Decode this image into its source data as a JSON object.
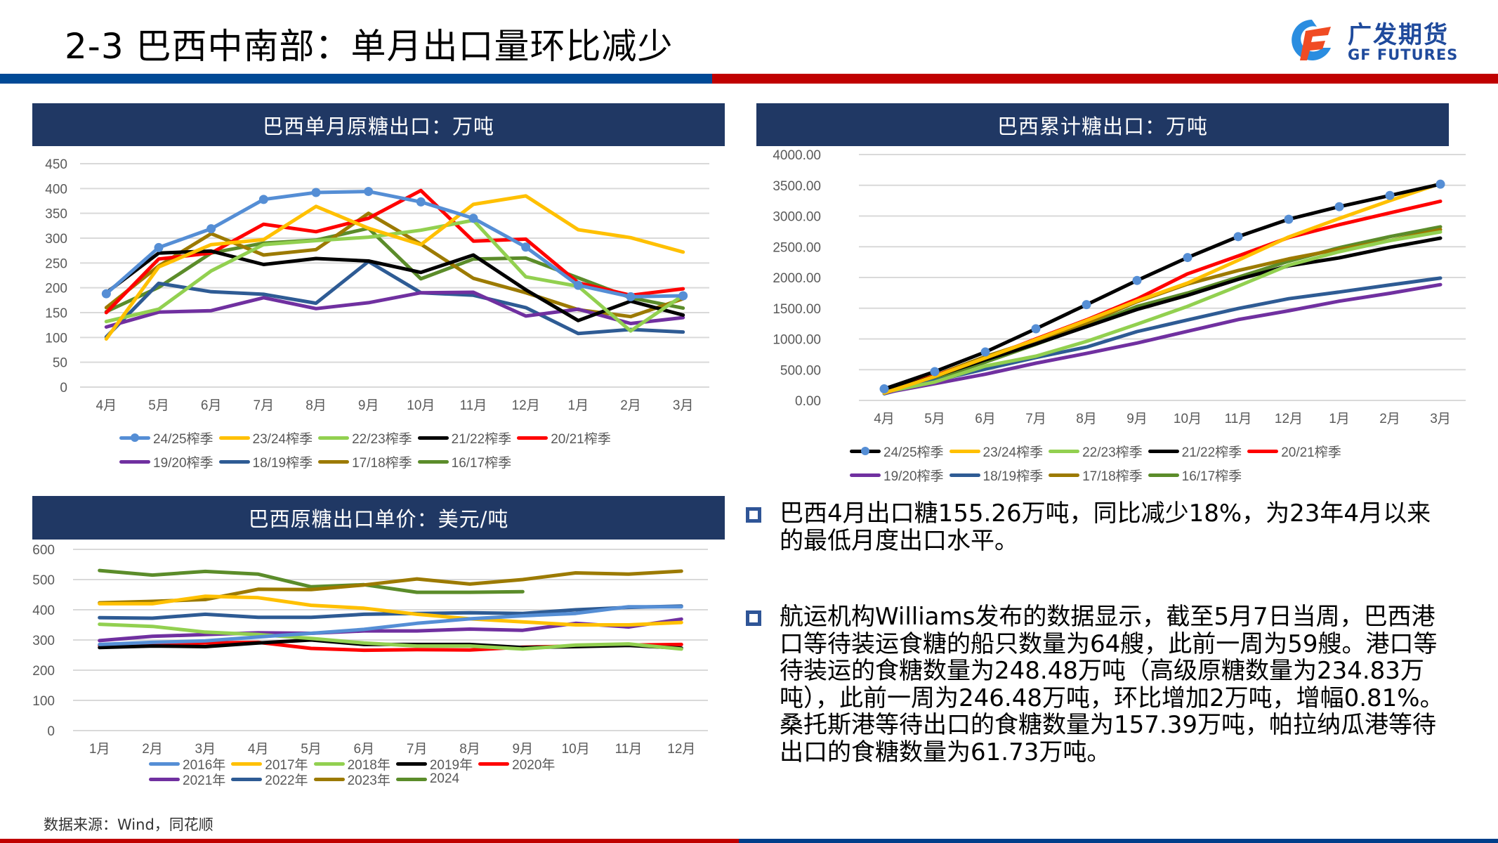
{
  "header": {
    "title": "2-3 巴西中南部：单月出口量环比减少",
    "logo": {
      "cn": "广发期货",
      "en": "GF FUTURES"
    }
  },
  "colors": {
    "header_blue": "#004a96",
    "header_red": "#c00000",
    "panel_navy": "#203864",
    "bullet_blue": "#2f5597"
  },
  "panels": {
    "monthly": {
      "title": "巴西单月原糖出口：万吨"
    },
    "cumulative": {
      "title": "巴西累计糖出口：万吨"
    },
    "price": {
      "title": "巴西原糖出口单价：美元/吨"
    }
  },
  "chart_data": [
    {
      "id": "monthly",
      "type": "line",
      "title": "巴西单月原糖出口：万吨",
      "xlabel": "",
      "ylabel": "",
      "categories": [
        "4月",
        "5月",
        "6月",
        "7月",
        "8月",
        "9月",
        "10月",
        "11月",
        "12月",
        "1月",
        "2月",
        "3月"
      ],
      "ylim": [
        0,
        450
      ],
      "yticks": [
        0,
        50,
        100,
        150,
        200,
        250,
        300,
        350,
        400,
        450
      ],
      "ytick_labels": [
        "0",
        "50",
        "100",
        "150",
        "200",
        "250",
        "300",
        "350",
        "400",
        "450"
      ],
      "grid": true,
      "legend_position": "bottom",
      "series": [
        {
          "name": "24/25榨季",
          "color": "#558ed5",
          "marker": true,
          "values": [
            188,
            281,
            319,
            378,
            392,
            394,
            373,
            340,
            282,
            205,
            182,
            184
          ]
        },
        {
          "name": "23/24榨季",
          "color": "#ffc000",
          "values": [
            97,
            242,
            287,
            297,
            364,
            320,
            287,
            368,
            385,
            317,
            301,
            272
          ]
        },
        {
          "name": "22/23榨季",
          "color": "#92d050",
          "values": [
            132,
            157,
            234,
            287,
            295,
            302,
            316,
            336,
            222,
            203,
            113,
            185
          ]
        },
        {
          "name": "21/22榨季",
          "color": "#000000",
          "values": [
            190,
            270,
            274,
            247,
            259,
            254,
            231,
            266,
            196,
            134,
            173,
            145
          ]
        },
        {
          "name": "20/21榨季",
          "color": "#ff0000",
          "values": [
            150,
            258,
            270,
            328,
            313,
            340,
            396,
            294,
            298,
            210,
            185,
            198
          ]
        },
        {
          "name": "19/20榨季",
          "color": "#7030a0",
          "values": [
            121,
            151,
            154,
            180,
            158,
            170,
            190,
            191,
            143,
            157,
            128,
            140
          ]
        },
        {
          "name": "18/19榨季",
          "color": "#2e5b94",
          "values": [
            101,
            209,
            192,
            187,
            169,
            253,
            190,
            185,
            160,
            108,
            116,
            111
          ]
        },
        {
          "name": "17/18榨季",
          "color": "#9c7a00",
          "values": [
            160,
            244,
            309,
            266,
            277,
            350,
            288,
            219,
            190,
            156,
            142,
            178
          ]
        },
        {
          "name": "16/17榨季",
          "color": "#5b8c2a",
          "values": [
            152,
            201,
            270,
            290,
            296,
            320,
            218,
            258,
            260,
            220,
            180,
            159
          ]
        }
      ]
    },
    {
      "id": "cumulative",
      "type": "line",
      "title": "巴西累计糖出口：万吨",
      "xlabel": "",
      "ylabel": "",
      "categories": [
        "4月",
        "5月",
        "6月",
        "7月",
        "8月",
        "9月",
        "10月",
        "11月",
        "12月",
        "1月",
        "2月",
        "3月"
      ],
      "ylim": [
        0,
        4000
      ],
      "yticks": [
        0,
        500,
        1000,
        1500,
        2000,
        2500,
        3000,
        3500,
        4000
      ],
      "ytick_labels": [
        "0.00",
        "500.00",
        "1000.00",
        "1500.00",
        "2000.00",
        "2500.00",
        "3000.00",
        "3500.00",
        "4000.00"
      ],
      "grid": true,
      "legend_position": "bottom",
      "series": [
        {
          "name": "24/25榨季",
          "color": "#000000",
          "marker_color": "#558ed5",
          "marker": true,
          "values": [
            188,
            469,
            788,
            1166,
            1558,
            1952,
            2325,
            2665,
            2947,
            3152,
            3334,
            3518
          ]
        },
        {
          "name": "23/24榨季",
          "color": "#ffc000",
          "values": [
            120,
            390,
            690,
            990,
            1300,
            1620,
            1910,
            2280,
            2660,
            2960,
            3250,
            3530
          ]
        },
        {
          "name": "22/23榨季",
          "color": "#92d050",
          "values": [
            132,
            300,
            560,
            720,
            960,
            1240,
            1530,
            1860,
            2200,
            2420,
            2600,
            2740
          ]
        },
        {
          "name": "21/22榨季",
          "color": "#000000",
          "values": [
            150,
            390,
            660,
            920,
            1200,
            1480,
            1710,
            1970,
            2190,
            2320,
            2490,
            2640
          ]
        },
        {
          "name": "20/21榨季",
          "color": "#ff0000",
          "values": [
            150,
            400,
            680,
            1000,
            1310,
            1650,
            2060,
            2350,
            2650,
            2860,
            3050,
            3240
          ]
        },
        {
          "name": "19/20榨季",
          "color": "#7030a0",
          "values": [
            121,
            272,
            426,
            606,
            764,
            934,
            1124,
            1315,
            1458,
            1615,
            1743,
            1883
          ]
        },
        {
          "name": "18/19榨季",
          "color": "#2e5b94",
          "values": [
            110,
            319,
            511,
            698,
            867,
            1120,
            1310,
            1495,
            1655,
            1763,
            1879,
            1990
          ]
        },
        {
          "name": "17/18榨季",
          "color": "#9c7a00",
          "values": [
            160,
            404,
            713,
            979,
            1256,
            1606,
            1894,
            2113,
            2303,
            2459,
            2601,
            2779
          ]
        },
        {
          "name": "16/17榨季",
          "color": "#5b8c2a",
          "values": [
            152,
            353,
            623,
            913,
            1209,
            1529,
            1747,
            2005,
            2265,
            2485,
            2665,
            2824
          ]
        }
      ]
    },
    {
      "id": "price",
      "type": "line",
      "title": "巴西原糖出口单价：美元/吨",
      "xlabel": "",
      "ylabel": "",
      "categories": [
        "1月",
        "2月",
        "3月",
        "4月",
        "5月",
        "6月",
        "7月",
        "8月",
        "9月",
        "10月",
        "11月",
        "12月"
      ],
      "ylim": [
        0,
        600
      ],
      "yticks": [
        0,
        100,
        200,
        300,
        400,
        500,
        600
      ],
      "ytick_labels": [
        "0",
        "100",
        "200",
        "300",
        "400",
        "500",
        "600"
      ],
      "grid": true,
      "legend_position": "bottom",
      "series": [
        {
          "name": "2016年",
          "color": "#558ed5",
          "values": [
            285,
            292,
            297,
            310,
            322,
            335,
            355,
            370,
            380,
            388,
            410,
            410
          ]
        },
        {
          "name": "2017年",
          "color": "#ffc000",
          "values": [
            420,
            420,
            445,
            440,
            415,
            405,
            385,
            370,
            360,
            350,
            350,
            358
          ]
        },
        {
          "name": "2018年",
          "color": "#92d050",
          "values": [
            352,
            345,
            326,
            318,
            305,
            290,
            280,
            280,
            270,
            283,
            287,
            270
          ]
        },
        {
          "name": "2019年",
          "color": "#000000",
          "values": [
            275,
            280,
            278,
            290,
            300,
            285,
            285,
            285,
            275,
            278,
            282,
            273
          ]
        },
        {
          "name": "2020年",
          "color": "#ff0000",
          "values": [
            282,
            286,
            290,
            292,
            272,
            266,
            268,
            267,
            276,
            280,
            283,
            285
          ]
        },
        {
          "name": "2021年",
          "color": "#7030a0",
          "values": [
            298,
            312,
            318,
            324,
            322,
            330,
            330,
            336,
            332,
            355,
            343,
            369
          ]
        },
        {
          "name": "2022年",
          "color": "#2e5b94",
          "values": [
            374,
            372,
            385,
            375,
            375,
            385,
            388,
            390,
            388,
            400,
            408,
            412
          ]
        },
        {
          "name": "2023年",
          "color": "#9c7a00",
          "values": [
            423,
            428,
            434,
            468,
            467,
            482,
            502,
            485,
            500,
            522,
            518,
            528
          ]
        },
        {
          "name": "2024",
          "color": "#5b8c2a",
          "values": [
            530,
            515,
            527,
            518,
            476,
            483,
            458,
            458,
            460,
            null,
            null,
            null
          ]
        }
      ]
    }
  ],
  "bullets": [
    "巴西4月出口糖155.26万吨，同比减少18%，为23年4月以来的最低月度出口水平。",
    "航运机构Williams发布的数据显示，截至5月7日当周，巴西港口等待装运食糖的船只数量为64艘，此前一周为59艘。港口等待装运的食糖数量为248.48万吨（高级原糖数量为234.83万吨），此前一周为246.48万吨，环比增加2万吨，增幅0.81%。桑托斯港等待出口的食糖数量为157.39万吨，帕拉纳瓜港等待出口的食糖数量为61.73万吨。"
  ],
  "footer": {
    "source": "数据来源：Wind，同花顺"
  }
}
